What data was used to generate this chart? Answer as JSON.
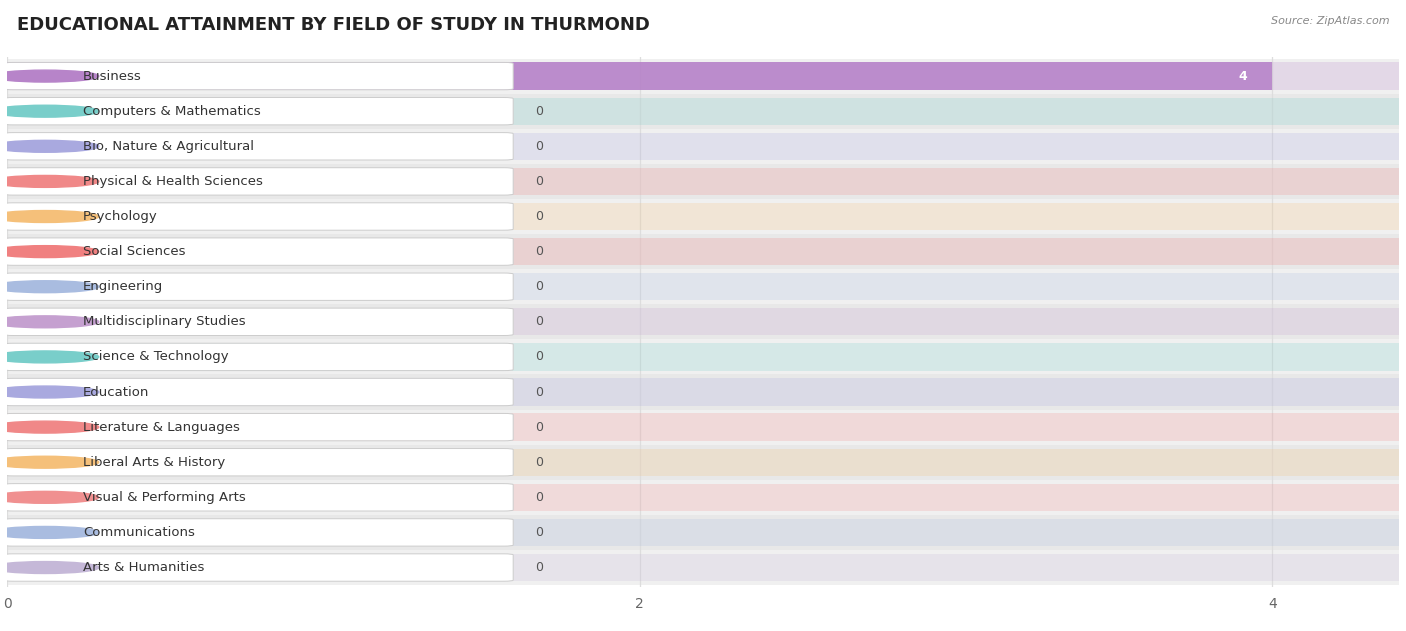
{
  "title": "EDUCATIONAL ATTAINMENT BY FIELD OF STUDY IN THURMOND",
  "source": "Source: ZipAtlas.com",
  "categories": [
    "Business",
    "Computers & Mathematics",
    "Bio, Nature & Agricultural",
    "Physical & Health Sciences",
    "Psychology",
    "Social Sciences",
    "Engineering",
    "Multidisciplinary Studies",
    "Science & Technology",
    "Education",
    "Literature & Languages",
    "Liberal Arts & History",
    "Visual & Performing Arts",
    "Communications",
    "Arts & Humanities"
  ],
  "values": [
    4,
    0,
    0,
    0,
    0,
    0,
    0,
    0,
    0,
    0,
    0,
    0,
    0,
    0,
    0
  ],
  "bar_colors": [
    "#b784c9",
    "#79ceca",
    "#a9a9df",
    "#f08888",
    "#f5c07a",
    "#f08080",
    "#a9bce0",
    "#c5a0d0",
    "#79ceca",
    "#a9a9df",
    "#f08888",
    "#f5c07a",
    "#f09090",
    "#a9bce0",
    "#c5b8d8"
  ],
  "xlim_max": 4.4,
  "xticks": [
    0,
    2,
    4
  ],
  "title_fontsize": 13,
  "label_fontsize": 9.5,
  "value_fontsize": 9,
  "bg_color": "#ffffff",
  "grid_color": "#dddddd",
  "row_alt_color": "#f5f5f5",
  "row_base_color": "#efefef"
}
